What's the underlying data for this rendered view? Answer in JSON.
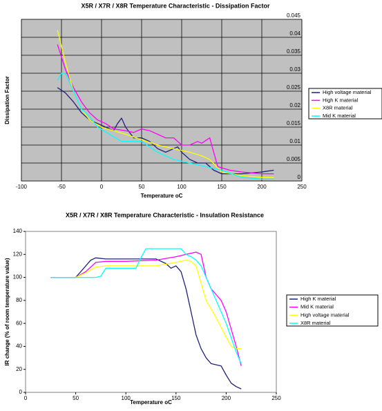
{
  "chart_data": [
    {
      "type": "line",
      "title": "X5R / X7R / X8R Temperature Characteristic - Dissipation Factor",
      "x_label": "Temperature oC",
      "y_label": "Dissipation Factor",
      "xlim": [
        -100,
        250
      ],
      "xticks": [
        -100,
        -50,
        0,
        50,
        100,
        150,
        200,
        250
      ],
      "ylim": [
        0,
        0.045
      ],
      "yticks": [
        0,
        0.005,
        0.01,
        0.015,
        0.02,
        0.025,
        0.03,
        0.035,
        0.04,
        0.045
      ],
      "grid": true,
      "plot_background": "#c0c0c0",
      "legend": "right",
      "series": [
        {
          "name": "High voltage material",
          "color": "#1f1f7a",
          "x": [
            -55,
            -45,
            -35,
            -25,
            -15,
            -5,
            5,
            15,
            20,
            25,
            30,
            40,
            50,
            60,
            70,
            80,
            90,
            95,
            100,
            110,
            120,
            130,
            140,
            150,
            175,
            200,
            215
          ],
          "values": [
            0.026,
            0.0245,
            0.022,
            0.019,
            0.017,
            0.016,
            0.015,
            0.014,
            0.016,
            0.0175,
            0.015,
            0.012,
            0.012,
            0.011,
            0.009,
            0.008,
            0.009,
            0.0095,
            0.008,
            0.006,
            0.005,
            0.005,
            0.003,
            0.002,
            0.002,
            0.0025,
            0.003
          ]
        },
        {
          "name": "High K material",
          "color": "#ff00ff",
          "x": [
            -55,
            -45,
            -35,
            -25,
            -15,
            -5,
            5,
            15,
            30,
            40,
            50,
            60,
            70,
            80,
            90,
            100,
            110,
            120,
            125,
            135,
            145,
            160,
            175,
            200,
            215
          ],
          "values": [
            0.038,
            0.031,
            0.026,
            0.022,
            0.019,
            0.017,
            0.016,
            0.0145,
            0.014,
            0.0135,
            0.0145,
            0.014,
            0.013,
            0.012,
            0.012,
            0.01,
            0.01,
            0.011,
            0.0105,
            0.012,
            0.004,
            0.003,
            0.0025,
            0.002,
            0.002
          ]
        },
        {
          "name": "X8R material",
          "color": "#ffff00",
          "x": [
            -55,
            -45,
            -35,
            -25,
            -15,
            0,
            15,
            30,
            50,
            70,
            90,
            110,
            125,
            135,
            150,
            175,
            200,
            215
          ],
          "values": [
            0.042,
            0.033,
            0.025,
            0.02,
            0.017,
            0.015,
            0.014,
            0.013,
            0.0115,
            0.01,
            0.009,
            0.008,
            0.007,
            0.006,
            0.0025,
            0.0015,
            0.001,
            0.001
          ]
        },
        {
          "name": "Mid K material",
          "color": "#00ffff",
          "x": [
            -55,
            -50,
            -45,
            -35,
            -25,
            -15,
            -5,
            10,
            25,
            40,
            50,
            70,
            90,
            110,
            130,
            150,
            175,
            200,
            215
          ],
          "values": [
            0.028,
            0.03,
            0.03,
            0.025,
            0.02,
            0.018,
            0.015,
            0.013,
            0.011,
            0.011,
            0.011,
            0.008,
            0.006,
            0.005,
            0.004,
            0.003,
            0.001,
            0.0005,
            0.0005
          ]
        }
      ]
    },
    {
      "type": "line",
      "title": "X5R / X7R / X8R Temperature Characteristic - Insulation Resistance",
      "x_label": "Temperature oC",
      "y_label": "IR change (% of room temperature value)",
      "xlim": [
        0,
        250
      ],
      "xticks": [
        0,
        50,
        100,
        150,
        200,
        250
      ],
      "ylim": [
        0,
        140
      ],
      "yticks": [
        0,
        20,
        40,
        60,
        80,
        100,
        120,
        140
      ],
      "grid": false,
      "plot_background": "#ffffff",
      "legend": "right",
      "series": [
        {
          "name": "High K material",
          "color": "#1f1f7a",
          "x": [
            25,
            50,
            55,
            65,
            70,
            80,
            100,
            120,
            130,
            140,
            145,
            150,
            155,
            160,
            165,
            170,
            175,
            180,
            185,
            190,
            195,
            200,
            205,
            210,
            215
          ],
          "values": [
            100,
            100,
            105,
            115,
            117,
            116,
            116,
            116,
            116,
            112,
            108,
            110,
            105,
            90,
            70,
            50,
            38,
            30,
            25,
            24,
            23,
            15,
            8,
            5,
            3
          ]
        },
        {
          "name": "Mid K material",
          "color": "#ff00ff",
          "x": [
            50,
            60,
            70,
            80,
            100,
            130,
            150,
            160,
            170,
            175,
            180,
            185,
            190,
            195,
            200,
            205,
            210,
            215
          ],
          "values": [
            100,
            105,
            113,
            114,
            114,
            115,
            118,
            120,
            122,
            120,
            100,
            90,
            85,
            80,
            70,
            55,
            40,
            23
          ]
        },
        {
          "name": "High voltage material",
          "color": "#ffff00",
          "x": [
            50,
            60,
            70,
            80,
            100,
            130,
            150,
            160,
            165,
            170,
            175,
            180,
            190,
            200,
            205,
            210,
            215
          ],
          "values": [
            100,
            104,
            109,
            110,
            110,
            110,
            113,
            115,
            114,
            110,
            95,
            80,
            65,
            48,
            40,
            38,
            38
          ]
        },
        {
          "name": "X8R material",
          "color": "#00ffff",
          "x": [
            25,
            50,
            70,
            75,
            80,
            90,
            110,
            115,
            120,
            140,
            155,
            160,
            165,
            170,
            175,
            180,
            190,
            200,
            210,
            215
          ],
          "values": [
            100,
            100,
            100,
            101,
            108,
            108,
            108,
            117,
            125,
            125,
            125,
            120,
            118,
            115,
            110,
            100,
            80,
            60,
            35,
            25
          ]
        }
      ]
    }
  ]
}
